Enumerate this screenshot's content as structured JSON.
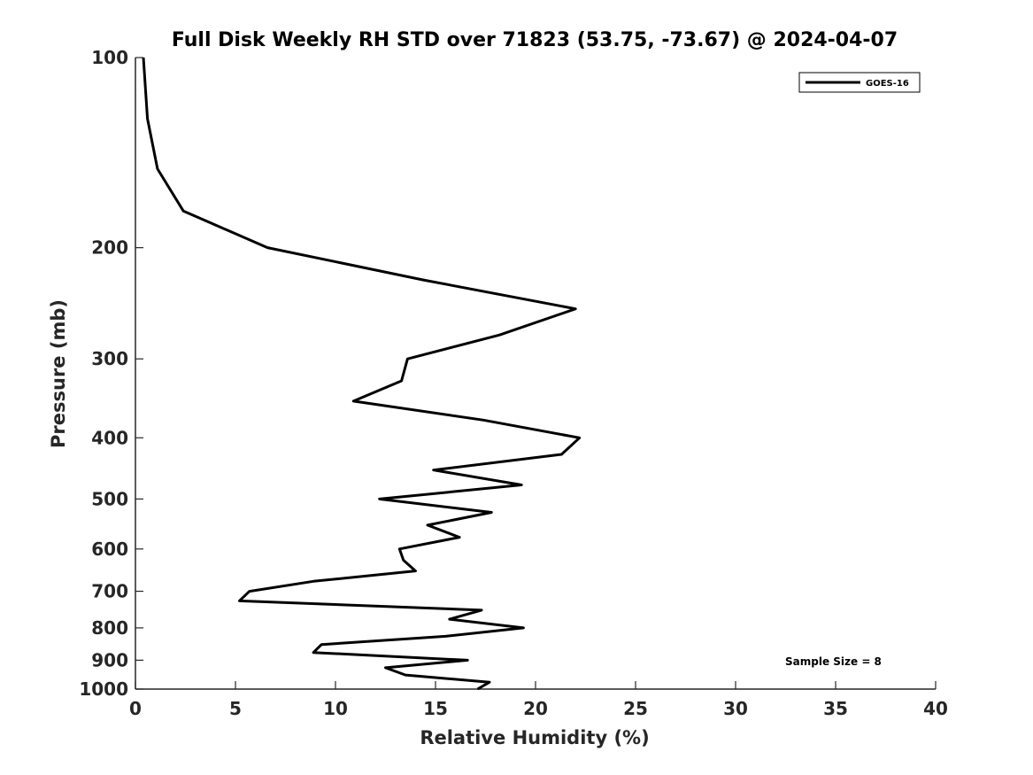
{
  "chart_data": {
    "type": "line",
    "title": "Full Disk Weekly RH STD over 71823 (53.75, -73.67) @ 2024-04-07",
    "xlabel": "Relative Humidity (%)",
    "ylabel": "Pressure (mb)",
    "xlim": [
      0,
      40
    ],
    "ylim": [
      100,
      1000
    ],
    "y_scale": "log",
    "y_reversed": true,
    "x_ticks": [
      0,
      5,
      10,
      15,
      20,
      25,
      30,
      35,
      40
    ],
    "y_ticks": [
      100,
      200,
      300,
      400,
      500,
      600,
      700,
      800,
      900,
      1000
    ],
    "grid": false,
    "legend_position": "top-right",
    "annotation": "Sample Size = 8",
    "series": [
      {
        "name": "GOES-16",
        "color": "#000000",
        "points": [
          [
            0.4,
            100
          ],
          [
            0.6,
            125
          ],
          [
            1.1,
            150
          ],
          [
            2.4,
            175
          ],
          [
            6.6,
            200
          ],
          [
            14.4,
            225
          ],
          [
            22.0,
            250
          ],
          [
            18.2,
            275
          ],
          [
            13.6,
            300
          ],
          [
            13.3,
            325
          ],
          [
            10.9,
            350
          ],
          [
            17.4,
            375
          ],
          [
            22.2,
            400
          ],
          [
            21.3,
            425
          ],
          [
            14.9,
            450
          ],
          [
            19.3,
            475
          ],
          [
            12.2,
            500
          ],
          [
            17.8,
            525
          ],
          [
            14.6,
            550
          ],
          [
            16.2,
            575
          ],
          [
            13.2,
            600
          ],
          [
            13.4,
            625
          ],
          [
            14.0,
            650
          ],
          [
            8.9,
            675
          ],
          [
            5.7,
            700
          ],
          [
            5.2,
            725
          ],
          [
            17.3,
            750
          ],
          [
            15.7,
            775
          ],
          [
            19.4,
            800
          ],
          [
            15.5,
            825
          ],
          [
            9.3,
            850
          ],
          [
            8.9,
            875
          ],
          [
            16.6,
            900
          ],
          [
            12.5,
            925
          ],
          [
            13.5,
            950
          ],
          [
            17.7,
            975
          ],
          [
            17.1,
            1000
          ]
        ]
      }
    ]
  }
}
